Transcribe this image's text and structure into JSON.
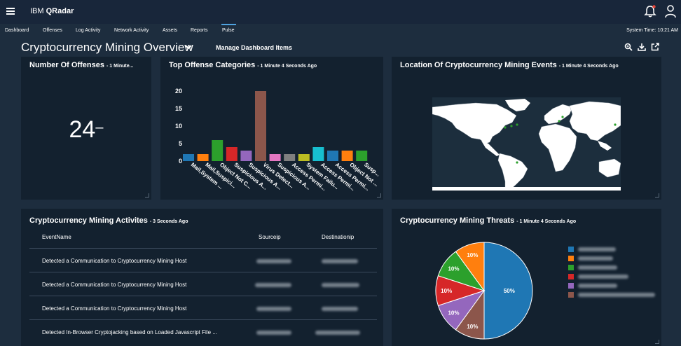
{
  "header": {
    "brand_prefix": "IBM ",
    "brand_name": "QRadar"
  },
  "nav": {
    "items": [
      {
        "label": "Dashboard"
      },
      {
        "label": "Offenses"
      },
      {
        "label": "Log Activity"
      },
      {
        "label": "Network Activity"
      },
      {
        "label": "Assets"
      },
      {
        "label": "Reports"
      },
      {
        "label": "Pulse"
      }
    ],
    "active": "Pulse",
    "system_time": "System Time: 10:21 AM"
  },
  "dashboard": {
    "title": "Cryptocurrency Mining Overview",
    "manage_label": "Manage Dashboard Items"
  },
  "panels": {
    "offenses": {
      "title": "Number Of Offenses",
      "subtitle": "- 1 Minute...",
      "value": "24",
      "trend": "–"
    },
    "categories": {
      "title": "Top Offense Categories",
      "subtitle": "- 1 Minute 4 Seconds Ago"
    },
    "location": {
      "title": "Location Of Cryptocurrency Mining Events",
      "subtitle": "- 1 Minute 4 Seconds Ago"
    },
    "activities": {
      "title": "Cryptocurrency Mining Activites",
      "subtitle": "- 3 Seconds Ago",
      "columns": [
        "EventName",
        "Sourceip",
        "Destinationip"
      ],
      "rows": [
        {
          "event": "Detected a Communication to Cryptocurrency Mining Host"
        },
        {
          "event": "Detected a Communication to Cryptocurrency Mining Host"
        },
        {
          "event": "Detected a Communication to Cryptocurrency Mining Host"
        },
        {
          "event": "Detected In-Browser Cryptojacking based on Loaded Javascript File ..."
        }
      ]
    },
    "threats": {
      "title": "Cryptocurrency Mining Threats",
      "subtitle": "- 1 Minute 4 Seconds Ago"
    }
  },
  "map": {
    "land_color": "#ffffff",
    "water_color": "#1c2e3d",
    "marker_color": "#2ca02c"
  },
  "chart_data": [
    {
      "type": "bar",
      "categories": [
        "Mail,System ...",
        "Mail,Suspici...",
        "Object Not C...",
        "Suspicious A...",
        "Suspicious A...",
        "Virus Detect...",
        "Suspicious A...",
        "Access Permi...",
        "System Failu...",
        "Access Permi...",
        "Access Permi...",
        "Object Not ...",
        "Susp..."
      ],
      "values": [
        2,
        2,
        6,
        4,
        3,
        20,
        2,
        2,
        2,
        4,
        3,
        3,
        3
      ],
      "colors": [
        "#1f77b4",
        "#ff7f0e",
        "#2ca02c",
        "#d62728",
        "#9467bd",
        "#8c564b",
        "#e377c2",
        "#7f7f7f",
        "#bcbd22",
        "#17becf",
        "#1f77b4",
        "#ff7f0e",
        "#2ca02c"
      ],
      "yticks": [
        0,
        5,
        10,
        15,
        20
      ],
      "ylim": [
        0,
        20
      ]
    },
    {
      "type": "pie",
      "slices": [
        {
          "value": 50,
          "label": "50%",
          "color": "#1f77b4"
        },
        {
          "value": 10,
          "label": "10%",
          "color": "#8c564b"
        },
        {
          "value": 10,
          "label": "10%",
          "color": "#9467bd"
        },
        {
          "value": 10,
          "label": "10%",
          "color": "#d62728"
        },
        {
          "value": 10,
          "label": "10%",
          "color": "#2ca02c"
        },
        {
          "value": 10,
          "label": "10%",
          "color": "#ff7f0e"
        }
      ],
      "legend_colors": [
        "#1f77b4",
        "#ff7f0e",
        "#2ca02c",
        "#d62728",
        "#9467bd",
        "#8c564b"
      ]
    }
  ]
}
